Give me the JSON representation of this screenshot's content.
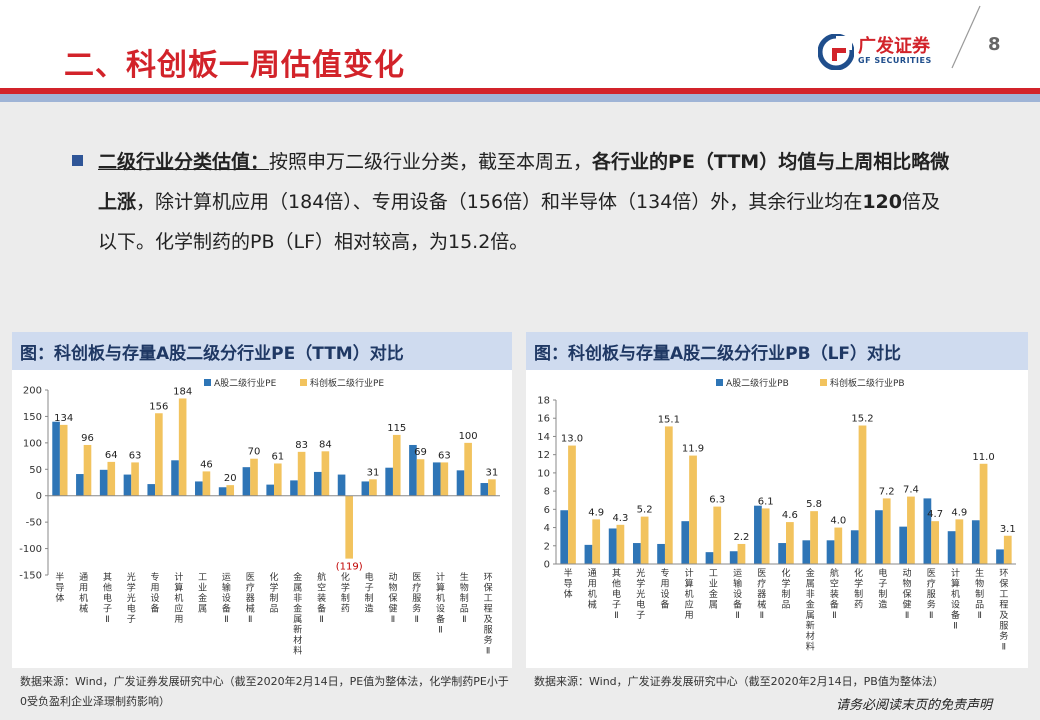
{
  "header": {
    "title": "二、科创板一周估值变化",
    "logo_cn": "广发证券",
    "logo_en": "GF SECURITIES",
    "page_number": "8"
  },
  "bullet": {
    "label": "二级行业分类估值：",
    "t1": "按照申万二级行业分类，截至本周五，",
    "b1": "各行业的PE（TTM）均值与上周相比略微上涨",
    "t2": "，除计算机应用（184倍）、专用设备（156倍）和半导体（134倍）外，其余行业均在",
    "b2": "120",
    "t3": "倍及以下。化学制药的PB（LF）相对较高，为15.2倍。"
  },
  "left_panel": {
    "heading": "图：科创板与存量A股二级分行业PE（TTM）对比",
    "source": "数据来源：Wind，广发证券发展研究中心（截至2020年2月14日，PE值为整体法，化学制药PE小于0受负盈利企业泽璟制药影响）"
  },
  "right_panel": {
    "heading": "图：科创板与存量A股二级分行业PB（LF）对比",
    "source": "数据来源：Wind，广发证券发展研究中心（截至2020年2月14日，PB值为整体法）"
  },
  "disclaimer": "请务必阅读末页的免责声明",
  "colors": {
    "brand_red": "#d2232a",
    "series_a": "#2e75b6",
    "series_kcb": "#f2c35e",
    "negative_label": "#c00000"
  },
  "chart_data": [
    {
      "type": "bar",
      "categories": [
        "半导体",
        "通用机械",
        "其他电子Ⅱ",
        "光学光电子",
        "专用设备",
        "计算机应用",
        "工业金属",
        "运输设备Ⅱ",
        "医疗器械Ⅱ",
        "化学制品",
        "金属非金属新材料",
        "航空装备Ⅱ",
        "化学制药",
        "电子制造",
        "动物保健Ⅱ",
        "医疗服务Ⅱ",
        "计算机设备Ⅱ",
        "生物制品Ⅱ",
        "环保工程及服务Ⅱ"
      ],
      "series": [
        {
          "name": "A股二级行业PE",
          "values": [
            140,
            41,
            49,
            40,
            22,
            67,
            27,
            16,
            54,
            21,
            29,
            45,
            40,
            27,
            53,
            96,
            63,
            48,
            24
          ]
        },
        {
          "name": "科创板二级行业PE",
          "values": [
            134,
            96,
            64,
            63,
            156,
            184,
            46,
            20,
            70,
            61,
            83,
            84,
            -119,
            31,
            115,
            69,
            63,
            100,
            31
          ]
        }
      ],
      "data_labels": [
        "134",
        "96",
        "64",
        "63",
        "156",
        "184",
        "46",
        "20",
        "70",
        "61",
        "83",
        "84",
        "(119)",
        "31",
        "115",
        "69",
        "63",
        "100",
        "31"
      ],
      "ylim": [
        -150,
        200
      ],
      "yticks": [
        -150,
        -100,
        -50,
        0,
        50,
        100,
        150,
        200
      ],
      "grid": false,
      "legend": "top"
    },
    {
      "type": "bar",
      "categories": [
        "半导体",
        "通用机械",
        "其他电子Ⅱ",
        "光学光电子",
        "专用设备",
        "计算机应用",
        "工业金属",
        "运输设备Ⅱ",
        "医疗器械Ⅱ",
        "化学制品",
        "金属非金属新材料",
        "航空装备Ⅱ",
        "化学制药",
        "电子制造",
        "动物保健Ⅱ",
        "医疗服务Ⅱ",
        "计算机设备Ⅱ",
        "生物制品Ⅱ",
        "环保工程及服务Ⅱ"
      ],
      "series": [
        {
          "name": "A股二级行业PB",
          "values": [
            5.9,
            2.1,
            3.9,
            2.3,
            2.2,
            4.7,
            1.3,
            1.4,
            6.4,
            2.3,
            2.6,
            2.6,
            3.7,
            5.9,
            4.1,
            7.2,
            3.6,
            4.8,
            1.6
          ]
        },
        {
          "name": "科创板二级行业PB",
          "values": [
            13.0,
            4.9,
            4.3,
            5.2,
            15.1,
            11.9,
            6.3,
            2.2,
            6.1,
            4.6,
            5.8,
            4.0,
            15.2,
            7.2,
            7.4,
            4.7,
            4.9,
            11.0,
            3.1
          ]
        }
      ],
      "data_labels": [
        "13.0",
        "4.9",
        "4.3",
        "5.2",
        "15.1",
        "11.9",
        "6.3",
        "2.2",
        "6.1",
        "4.6",
        "5.8",
        "4.0",
        "15.2",
        "7.2",
        "7.4",
        "4.7",
        "4.9",
        "11.0",
        "3.1"
      ],
      "ylim": [
        0,
        18
      ],
      "yticks": [
        0,
        2,
        4,
        6,
        8,
        10,
        12,
        14,
        16,
        18
      ],
      "grid": false,
      "legend": "top"
    }
  ]
}
